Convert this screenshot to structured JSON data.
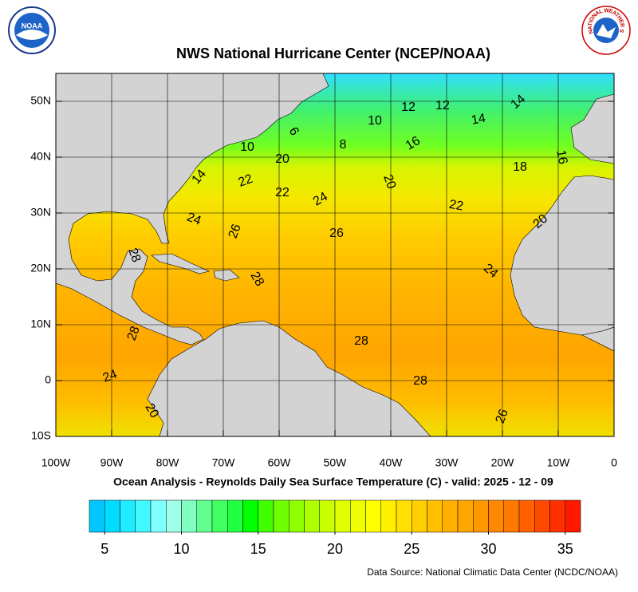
{
  "header": {
    "title": "NWS National Hurricane Center (NCEP/NOAA)",
    "left_logo": "NOAA",
    "right_logo": "NATIONAL WEATHER SERVICE"
  },
  "map": {
    "xlim": [
      -100,
      0
    ],
    "ylim": [
      -10,
      55
    ],
    "xticks": [
      {
        "value": -100,
        "label": "100W"
      },
      {
        "value": -90,
        "label": "90W"
      },
      {
        "value": -80,
        "label": "80W"
      },
      {
        "value": -70,
        "label": "70W"
      },
      {
        "value": -60,
        "label": "60W"
      },
      {
        "value": -50,
        "label": "50W"
      },
      {
        "value": -40,
        "label": "40W"
      },
      {
        "value": -30,
        "label": "30W"
      },
      {
        "value": -20,
        "label": "20W"
      },
      {
        "value": -10,
        "label": "10W"
      },
      0
    ],
    "yticks": [
      {
        "value": -10,
        "label": "10S"
      },
      0,
      {
        "value": 10,
        "label": "10N"
      },
      {
        "value": 20,
        "label": "20N"
      },
      {
        "value": 30,
        "label": "30N"
      },
      {
        "value": 40,
        "label": "40N"
      },
      {
        "value": 50,
        "label": "50N"
      }
    ],
    "grid": true,
    "contour_labels": [
      12,
      12,
      14,
      10,
      14,
      6,
      8,
      16,
      10,
      20,
      18,
      16,
      14,
      22,
      20,
      22,
      24,
      22,
      24,
      26,
      20,
      26,
      28,
      24,
      28,
      28,
      28,
      28,
      24,
      20,
      26
    ]
  },
  "caption": "Ocean Analysis - Reynolds Daily Sea Surface Temperature (C) - valid: 2025 - 12 - 09",
  "colorbar": {
    "lim": [
      4,
      36
    ],
    "ticks": [
      5,
      10,
      15,
      20,
      25,
      30,
      35
    ],
    "colors": [
      "#00c8ff",
      "#00dcff",
      "#20ecff",
      "#40f8ff",
      "#80ffff",
      "#a0ffe8",
      "#80ffc0",
      "#60ff90",
      "#40ff60",
      "#20ff40",
      "#00ff00",
      "#40ff00",
      "#70ff00",
      "#90ff00",
      "#b0ff00",
      "#c8ff00",
      "#e0ff00",
      "#f0ff00",
      "#ffff00",
      "#fff000",
      "#ffe000",
      "#ffd000",
      "#ffc000",
      "#ffb000",
      "#ffa500",
      "#ff9800",
      "#ff8800",
      "#ff7800",
      "#ff6000",
      "#ff4800",
      "#ff3000",
      "#ff1800"
    ]
  },
  "source": "Data Source: National Climatic Data Center (NCDC/NOAA)"
}
